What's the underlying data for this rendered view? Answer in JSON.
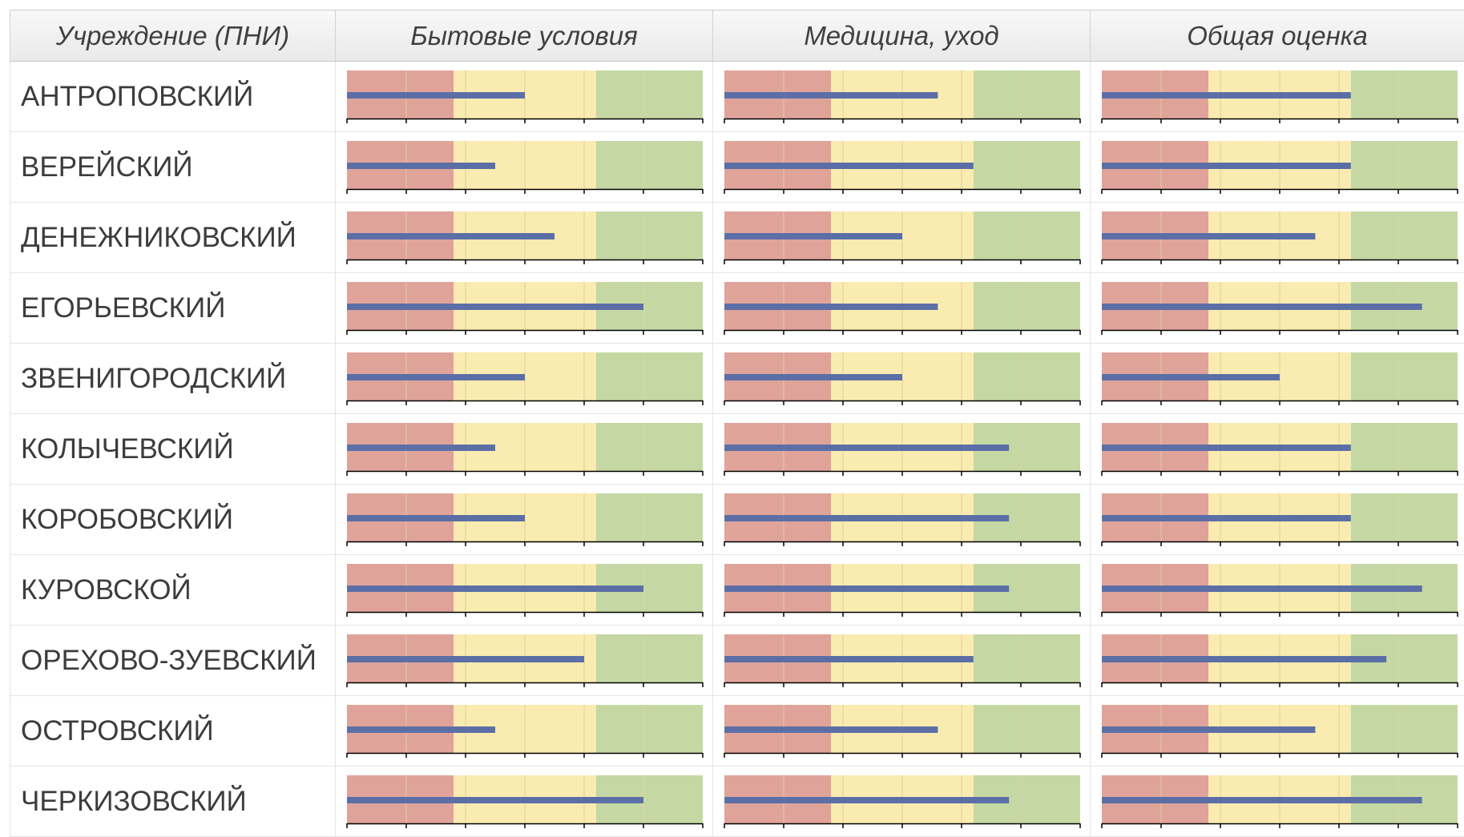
{
  "header": {
    "institution": "Учреждение (ПНИ)",
    "living": "Бытовые условия",
    "medicine": "Медицина, уход",
    "overall": "Общая оценка"
  },
  "colors": {
    "poor": "#e0a39a",
    "average": "#faebb0",
    "good": "#c5d8a4",
    "measure": "#5b6fa6",
    "gridline": "#ddcf9e",
    "axis": "#000000"
  },
  "chart_data": {
    "type": "bullet",
    "xlim": [
      0,
      15
    ],
    "ranges": {
      "poor": [
        0,
        4.5
      ],
      "average": [
        4.5,
        10.5
      ],
      "good": [
        10.5,
        15
      ]
    },
    "tick_step": 2.5,
    "metrics": [
      "Бытовые условия",
      "Медицина, уход",
      "Общая оценка"
    ],
    "rows": [
      {
        "name": "АНТРОПОВСКИЙ",
        "values": [
          7.5,
          9.0,
          10.5
        ]
      },
      {
        "name": "ВЕРЕЙСКИЙ",
        "values": [
          6.25,
          10.5,
          10.5
        ]
      },
      {
        "name": "ДЕНЕЖНИКОВСКИЙ",
        "values": [
          8.75,
          7.5,
          9.0
        ]
      },
      {
        "name": "ЕГОРЬЕВСКИЙ",
        "values": [
          12.5,
          9.0,
          13.5
        ]
      },
      {
        "name": "ЗВЕНИГОРОДСКИЙ",
        "values": [
          7.5,
          7.5,
          7.5
        ]
      },
      {
        "name": "КОЛЫЧЕВСКИЙ",
        "values": [
          6.25,
          12.0,
          10.5
        ]
      },
      {
        "name": "КОРОБОВСКИЙ",
        "values": [
          7.5,
          12.0,
          10.5
        ]
      },
      {
        "name": "КУРОВСКОЙ",
        "values": [
          12.5,
          12.0,
          13.5
        ]
      },
      {
        "name": "ОРЕХОВО-ЗУЕВСКИЙ",
        "values": [
          10.0,
          10.5,
          12.0
        ]
      },
      {
        "name": "ОСТРОВСКИЙ",
        "values": [
          6.25,
          9.0,
          9.0
        ]
      },
      {
        "name": "ЧЕРКИЗОВСКИЙ",
        "values": [
          12.5,
          12.0,
          13.5
        ]
      }
    ]
  }
}
